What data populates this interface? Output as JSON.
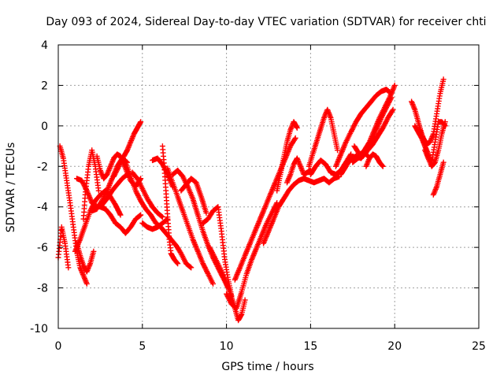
{
  "chart_data": {
    "type": "scatter",
    "title": "Day 093 of 2024, Sidereal Day-to-day VTEC variation (SDTVAR) for receiver chti",
    "xlabel": "GPS time / hours",
    "ylabel": "SDTVAR / TECUs",
    "xlim": [
      0,
      25
    ],
    "ylim": [
      -10,
      4
    ],
    "xticks": [
      0,
      5,
      10,
      15,
      20,
      25
    ],
    "yticks": [
      -10,
      -8,
      -6,
      -4,
      -2,
      0,
      2,
      4
    ],
    "grid": true,
    "marker": "+",
    "color": "#ff0000",
    "series": [
      {
        "x": [
          0.0,
          0.2,
          0.4,
          0.6
        ],
        "y": [
          -6.5,
          -5.0,
          -5.8,
          -7.0
        ]
      },
      {
        "x": [
          0.1,
          0.3,
          0.5,
          0.7,
          0.9,
          1.1,
          1.3,
          1.5,
          1.7
        ],
        "y": [
          -1.0,
          -1.6,
          -2.7,
          -3.8,
          -5.0,
          -6.2,
          -7.0,
          -7.4,
          -7.8
        ]
      },
      {
        "x": [
          1.0,
          1.3,
          1.6,
          1.9,
          2.2,
          2.5,
          2.8,
          3.1,
          3.4,
          3.7
        ],
        "y": [
          -6.2,
          -5.6,
          -4.9,
          -4.2,
          -3.7,
          -3.4,
          -3.2,
          -3.5,
          -3.9,
          -4.4
        ]
      },
      {
        "x": [
          1.1,
          1.3,
          1.5,
          1.7,
          1.9,
          2.1
        ],
        "y": [
          -5.8,
          -6.4,
          -6.9,
          -7.2,
          -6.8,
          -6.2
        ]
      },
      {
        "x": [
          1.5,
          1.6,
          1.8,
          2.0,
          2.2,
          2.4
        ],
        "y": [
          -4.6,
          -3.4,
          -2.0,
          -1.2,
          -2.0,
          -3.2
        ]
      },
      {
        "x": [
          2.0,
          2.3,
          2.6,
          2.9,
          3.2,
          3.5,
          3.8,
          4.1
        ],
        "y": [
          -4.2,
          -4.1,
          -3.7,
          -3.2,
          -2.6,
          -2.0,
          -1.6,
          -1.8
        ]
      },
      {
        "x": [
          2.5,
          2.8,
          3.1,
          3.4,
          3.7,
          4.0,
          4.3,
          4.6,
          4.9
        ],
        "y": [
          -4.0,
          -4.1,
          -4.4,
          -4.8,
          -5.0,
          -5.3,
          -5.0,
          -4.6,
          -4.4
        ]
      },
      {
        "x": [
          2.3,
          2.5,
          2.7,
          2.9,
          3.1,
          3.3,
          3.5,
          3.7,
          4.0,
          4.3,
          4.6,
          4.9
        ],
        "y": [
          -1.5,
          -2.2,
          -2.6,
          -2.4,
          -2.0,
          -1.6,
          -1.4,
          -1.5,
          -2.1,
          -2.7,
          -3.0,
          -2.6
        ]
      },
      {
        "x": [
          1.1,
          1.4,
          1.7,
          2.0,
          2.3,
          2.6,
          2.9,
          3.2,
          3.5,
          3.8,
          4.1
        ],
        "y": [
          -2.6,
          -2.7,
          -3.2,
          -3.8,
          -4.0,
          -3.9,
          -3.6,
          -3.2,
          -2.9,
          -2.6,
          -2.4
        ]
      },
      {
        "x": [
          3.3,
          3.6,
          3.9,
          4.1,
          4.3,
          4.5,
          4.7,
          4.9
        ],
        "y": [
          -2.5,
          -2.0,
          -1.5,
          -1.2,
          -0.8,
          -0.4,
          -0.1,
          0.2
        ]
      },
      {
        "x": [
          4.0,
          4.3,
          4.6,
          4.9,
          5.2,
          5.5,
          5.8,
          6.1,
          6.4,
          6.7,
          7.0,
          7.3,
          7.6,
          7.9
        ],
        "y": [
          -1.8,
          -2.5,
          -3.2,
          -3.7,
          -4.1,
          -4.4,
          -4.8,
          -5.0,
          -5.3,
          -5.6,
          -5.9,
          -6.3,
          -6.8,
          -7.0
        ]
      },
      {
        "x": [
          4.4,
          4.7,
          5.0,
          5.3,
          5.6,
          5.9,
          6.2
        ],
        "y": [
          -2.3,
          -2.6,
          -3.1,
          -3.6,
          -4.0,
          -4.3,
          -4.5
        ]
      },
      {
        "x": [
          5.0,
          5.3,
          5.6,
          5.9,
          6.2,
          6.5
        ],
        "y": [
          -4.8,
          -5.0,
          -5.1,
          -5.0,
          -4.8,
          -4.6
        ]
      },
      {
        "x": [
          5.6,
          5.9,
          6.2,
          6.5,
          6.8
        ],
        "y": [
          -1.7,
          -1.6,
          -1.9,
          -2.4,
          -3.0
        ]
      },
      {
        "x": [
          6.2,
          6.3,
          6.4,
          6.5,
          6.6,
          6.7,
          6.9,
          7.1
        ],
        "y": [
          -1.0,
          -2.0,
          -3.2,
          -4.5,
          -5.6,
          -6.3,
          -6.6,
          -6.8
        ]
      },
      {
        "x": [
          6.5,
          6.8,
          7.1,
          7.4,
          7.7,
          8.0,
          8.3,
          8.6,
          8.9,
          9.2
        ],
        "y": [
          -2.1,
          -2.8,
          -3.5,
          -4.2,
          -4.9,
          -5.6,
          -6.2,
          -6.8,
          -7.3,
          -7.8
        ]
      },
      {
        "x": [
          6.8,
          7.1,
          7.4,
          7.7,
          8.0,
          8.3,
          8.6,
          8.9,
          9.2,
          9.5,
          9.8,
          10.1
        ],
        "y": [
          -2.4,
          -2.2,
          -2.5,
          -3.0,
          -3.6,
          -4.4,
          -5.2,
          -5.9,
          -6.5,
          -7.0,
          -7.5,
          -8.0
        ]
      },
      {
        "x": [
          7.3,
          7.6,
          7.9,
          8.2,
          8.5,
          8.8
        ],
        "y": [
          -3.2,
          -2.9,
          -2.6,
          -2.8,
          -3.5,
          -4.3
        ]
      },
      {
        "x": [
          8.6,
          8.9,
          9.2,
          9.5,
          9.7,
          9.9,
          10.1,
          10.3
        ],
        "y": [
          -4.8,
          -4.6,
          -4.2,
          -4.0,
          -5.2,
          -6.6,
          -7.6,
          -8.4
        ]
      },
      {
        "x": [
          9.0,
          9.3,
          9.6,
          9.9,
          10.2,
          10.5,
          10.7,
          10.9,
          11.1
        ],
        "y": [
          -6.0,
          -6.5,
          -7.0,
          -7.6,
          -8.2,
          -9.0,
          -9.6,
          -9.3,
          -8.6
        ]
      },
      {
        "x": [
          10.0,
          10.3,
          10.6,
          10.9,
          11.2,
          11.5,
          11.8,
          12.1,
          12.4,
          12.7,
          13.0
        ],
        "y": [
          -8.3,
          -8.8,
          -9.0,
          -8.2,
          -7.3,
          -6.6,
          -6.0,
          -5.4,
          -4.8,
          -4.3,
          -3.8
        ]
      },
      {
        "x": [
          10.5,
          10.8,
          11.1,
          11.4,
          11.7,
          12.0,
          12.3,
          12.6,
          12.9,
          13.2,
          13.5,
          13.8,
          14.1
        ],
        "y": [
          -7.6,
          -7.0,
          -6.4,
          -5.8,
          -5.2,
          -4.6,
          -4.0,
          -3.4,
          -2.8,
          -2.2,
          -1.6,
          -1.0,
          -0.6
        ]
      },
      {
        "x": [
          12.2,
          12.5,
          12.8,
          13.1,
          13.4,
          13.7,
          14.0,
          14.3,
          14.6,
          14.9,
          15.2,
          15.5,
          15.8,
          16.1,
          16.4,
          16.7
        ],
        "y": [
          -5.8,
          -5.2,
          -4.6,
          -4.0,
          -3.6,
          -3.2,
          -2.9,
          -2.7,
          -2.6,
          -2.7,
          -2.8,
          -2.7,
          -2.6,
          -2.8,
          -2.6,
          -2.5
        ]
      },
      {
        "x": [
          13.0,
          13.2,
          13.4,
          13.6,
          13.8,
          14.0,
          14.2
        ],
        "y": [
          -3.2,
          -2.4,
          -1.6,
          -0.8,
          -0.2,
          0.2,
          -0.1
        ]
      },
      {
        "x": [
          13.6,
          13.8,
          14.0,
          14.2,
          14.4,
          14.6,
          14.8,
          15.0
        ],
        "y": [
          -2.8,
          -2.4,
          -1.9,
          -1.6,
          -2.0,
          -2.4,
          -2.3,
          -2.2
        ]
      },
      {
        "x": [
          14.9,
          15.2,
          15.5,
          15.8,
          16.0,
          16.2,
          16.4,
          16.6
        ],
        "y": [
          -2.0,
          -1.2,
          -0.4,
          0.4,
          0.8,
          0.4,
          -0.4,
          -1.2
        ]
      },
      {
        "x": [
          15.0,
          15.3,
          15.6,
          15.9,
          16.2,
          16.5,
          16.8,
          17.1,
          17.4
        ],
        "y": [
          -2.4,
          -2.0,
          -1.7,
          -1.9,
          -2.3,
          -2.4,
          -2.2,
          -1.8,
          -1.4
        ]
      },
      {
        "x": [
          16.5,
          16.8,
          17.1,
          17.4,
          17.7,
          18.0,
          18.3,
          18.6,
          18.9,
          19.2,
          19.5,
          19.8
        ],
        "y": [
          -2.0,
          -1.4,
          -0.8,
          -0.3,
          0.2,
          0.6,
          0.9,
          1.2,
          1.5,
          1.7,
          1.8,
          1.6
        ]
      },
      {
        "x": [
          16.8,
          17.1,
          17.4,
          17.7,
          18.0,
          18.3,
          18.6,
          18.9,
          19.2,
          19.5,
          19.8
        ],
        "y": [
          -2.4,
          -2.0,
          -1.6,
          -1.5,
          -1.6,
          -1.3,
          -0.8,
          -0.2,
          0.4,
          0.9,
          1.4
        ]
      },
      {
        "x": [
          17.5,
          17.8,
          18.1,
          18.4,
          18.7,
          19.0,
          19.3,
          19.6,
          19.9
        ],
        "y": [
          -1.8,
          -1.6,
          -1.5,
          -1.2,
          -0.9,
          -0.5,
          -0.1,
          0.4,
          0.8
        ]
      },
      {
        "x": [
          17.6,
          17.9,
          18.2,
          18.4
        ],
        "y": [
          -1.0,
          -1.4,
          -1.3,
          -1.5
        ]
      },
      {
        "x": [
          18.2,
          18.5,
          18.8,
          19.1,
          19.4,
          19.7,
          20.0
        ],
        "y": [
          -1.2,
          -0.8,
          -0.2,
          0.4,
          0.9,
          1.4,
          2.0
        ]
      },
      {
        "x": [
          18.3,
          18.5,
          18.7,
          18.9,
          19.1,
          19.3
        ],
        "y": [
          -2.0,
          -1.6,
          -1.4,
          -1.5,
          -1.8,
          -2.0
        ]
      },
      {
        "x": [
          21.0,
          21.2,
          21.4,
          21.6,
          21.8,
          22.0
        ],
        "y": [
          1.2,
          0.8,
          0.2,
          -0.4,
          -1.0,
          -1.6
        ]
      },
      {
        "x": [
          21.2,
          21.4,
          21.6,
          21.8,
          22.0,
          22.2,
          22.4,
          22.6,
          22.8,
          23.0
        ],
        "y": [
          0.0,
          -0.3,
          -0.6,
          -1.0,
          -1.4,
          -1.8,
          -0.8,
          0.2,
          0.2,
          0.0
        ]
      },
      {
        "x": [
          21.5,
          21.7,
          21.9,
          22.1,
          22.3,
          22.5,
          22.7,
          22.9
        ],
        "y": [
          -0.2,
          -0.6,
          -0.9,
          -0.8,
          -0.4,
          0.6,
          1.6,
          2.3
        ]
      },
      {
        "x": [
          21.8,
          22.0,
          22.2,
          22.4,
          22.6,
          22.8,
          23.0
        ],
        "y": [
          -1.2,
          -1.6,
          -2.0,
          -1.8,
          -1.2,
          -0.4,
          0.2
        ]
      },
      {
        "x": [
          22.3,
          22.5,
          22.7,
          22.9
        ],
        "y": [
          -3.4,
          -3.0,
          -2.4,
          -1.8
        ]
      }
    ]
  }
}
